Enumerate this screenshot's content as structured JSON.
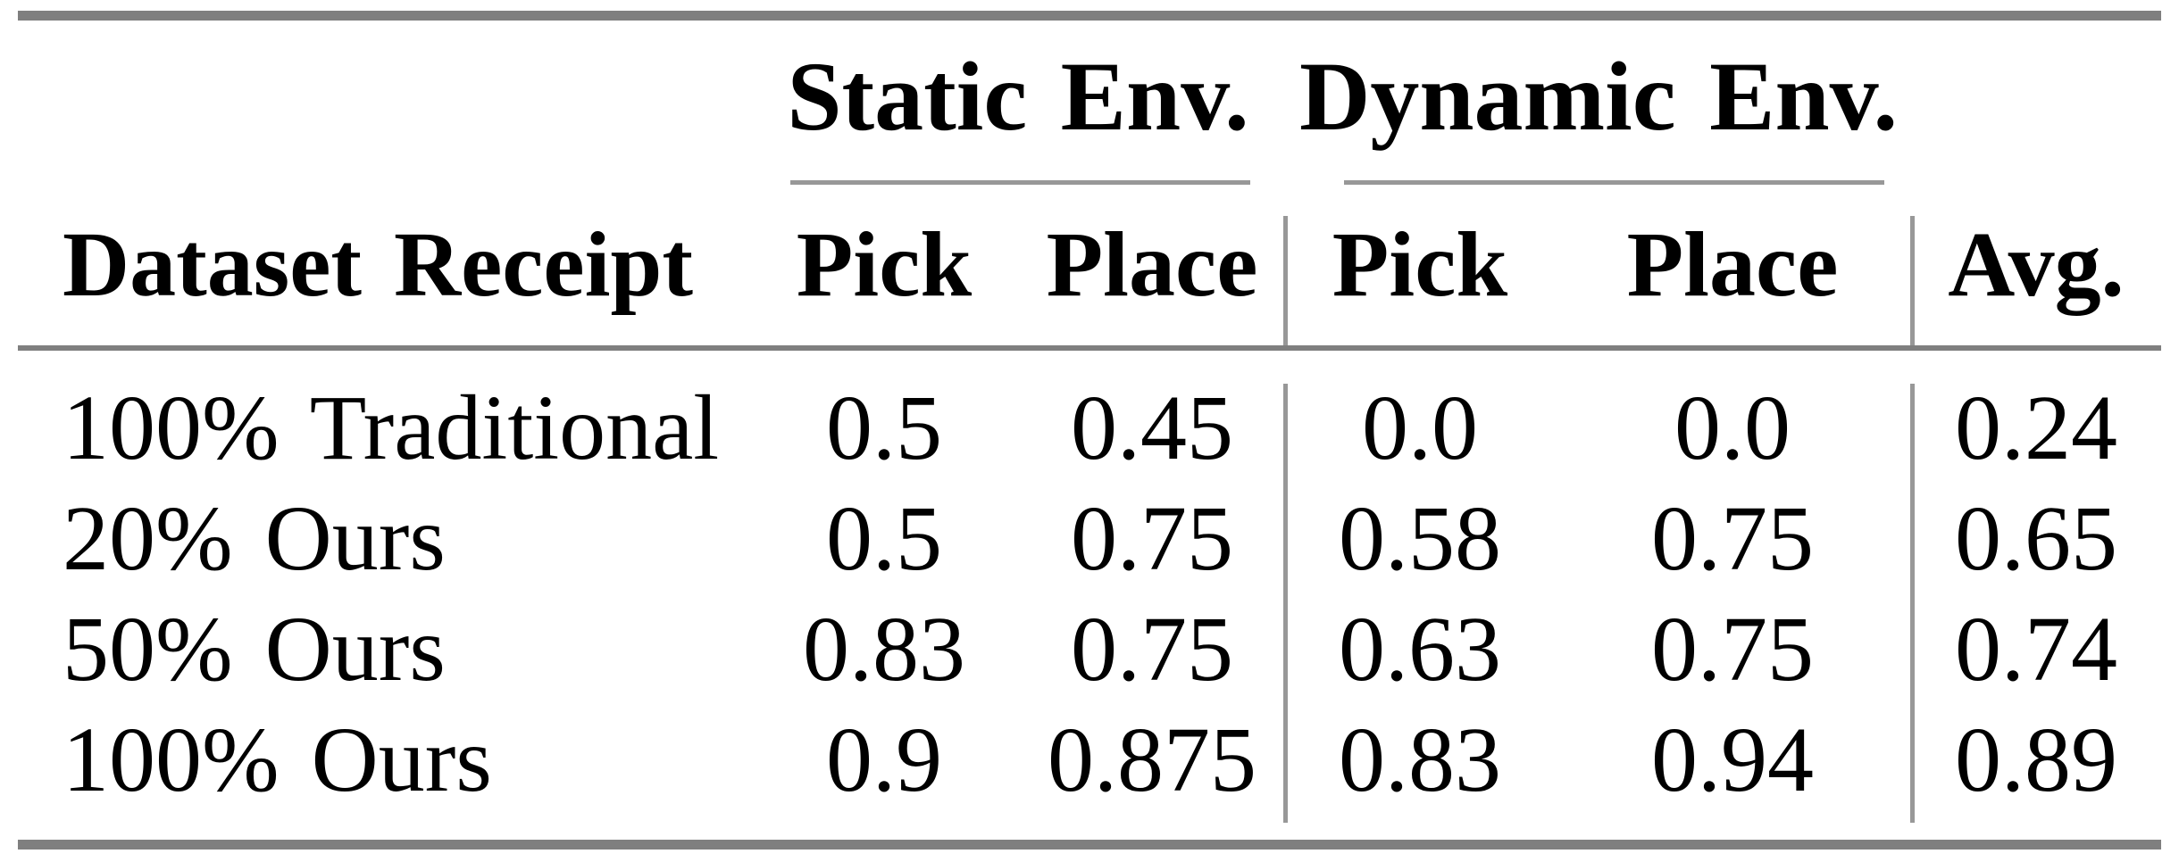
{
  "table": {
    "groups": [
      {
        "label": "Static Env."
      },
      {
        "label": "Dynamic Env."
      }
    ],
    "columns": {
      "row_header": "Dataset Receipt",
      "static_pick": "Pick",
      "static_place": "Place",
      "dynamic_pick": "Pick",
      "dynamic_place": "Place",
      "avg": "Avg."
    },
    "rows": [
      {
        "label": "100% Traditional",
        "static_pick": "0.5",
        "static_place": "0.45",
        "dynamic_pick": "0.0",
        "dynamic_place": "0.0",
        "avg": "0.24"
      },
      {
        "label": "20% Ours",
        "static_pick": "0.5",
        "static_place": "0.75",
        "dynamic_pick": "0.58",
        "dynamic_place": "0.75",
        "avg": "0.65"
      },
      {
        "label": "50% Ours",
        "static_pick": "0.83",
        "static_place": "0.75",
        "dynamic_pick": "0.63",
        "dynamic_place": "0.75",
        "avg": "0.74"
      },
      {
        "label": "100% Ours",
        "static_pick": "0.9",
        "static_place": "0.875",
        "dynamic_pick": "0.83",
        "dynamic_place": "0.94",
        "avg": "0.89"
      }
    ]
  },
  "theme": {
    "rule_color": "#7f7f7f",
    "light_rule_color": "#989898",
    "text_color": "#000000",
    "background_color": "#ffffff"
  },
  "chart_data": {
    "type": "table",
    "title": "",
    "column_groups": [
      {
        "label": "Static Env.",
        "columns": [
          "Pick",
          "Place"
        ]
      },
      {
        "label": "Dynamic Env.",
        "columns": [
          "Pick",
          "Place"
        ]
      }
    ],
    "columns": [
      "Dataset Receipt",
      "Static Env. Pick",
      "Static Env. Place",
      "Dynamic Env. Pick",
      "Dynamic Env. Place",
      "Avg."
    ],
    "rows": [
      [
        "100% Traditional",
        0.5,
        0.45,
        0.0,
        0.0,
        0.24
      ],
      [
        "20% Ours",
        0.5,
        0.75,
        0.58,
        0.75,
        0.65
      ],
      [
        "50% Ours",
        0.83,
        0.75,
        0.63,
        0.75,
        0.74
      ],
      [
        "100% Ours",
        0.9,
        0.875,
        0.83,
        0.94,
        0.89
      ]
    ]
  }
}
